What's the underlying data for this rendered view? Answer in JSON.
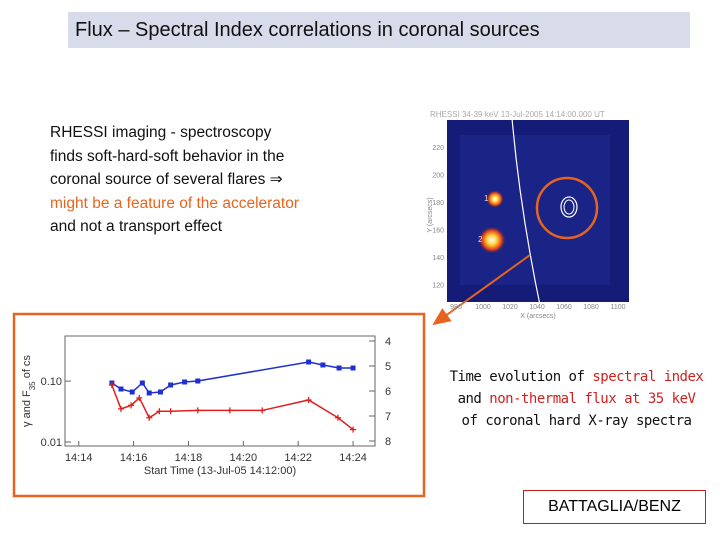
{
  "title": "Flux – Spectral Index correlations in coronal sources",
  "left_text": [
    "RHESSI imaging - spectroscopy",
    "finds  soft-hard-soft behavior in the",
    "coronal source of several flares ⇒",
    "might be a feature of the accelerator",
    "and not a transport effect"
  ],
  "image": {
    "title": "RHESSI 34-39 keV 13-Jul-2005 14:14:00.000 UT",
    "y_label": "Y (arcsecs)",
    "x_label": "X (arcsecs)",
    "yticks": [
      "220",
      "200",
      "180",
      "160",
      "140",
      "120"
    ],
    "xticks": [
      "980",
      "1000",
      "1020",
      "1040",
      "1060",
      "1080",
      "1100"
    ],
    "sources": [
      "1",
      "2"
    ]
  },
  "plot": {
    "y_label": [
      "γ and F",
      "35",
      " of cs"
    ],
    "x_label": "Start Time (13-Jul-05 14:12:00)",
    "xlim": [
      13.5,
      24.8
    ],
    "xticks": [
      {
        "value": 14,
        "label": "14:14"
      },
      {
        "value": 16,
        "label": "14:16"
      },
      {
        "value": 18,
        "label": "14:18"
      },
      {
        "value": 20,
        "label": "14:20"
      },
      {
        "value": 22,
        "label": "14:22"
      },
      {
        "value": 24,
        "label": "14:24"
      }
    ],
    "ylim": [
      0.0086,
      0.55
    ],
    "log_y": true,
    "yticks": [
      {
        "value": 0.1,
        "label": "0.10"
      },
      0.01
    ],
    "y2lim": [
      3.8,
      8.2
    ],
    "y2ticks": [
      4,
      5,
      6,
      7,
      8
    ],
    "series": [
      {
        "color": "#1f2fd0",
        "axis": "y2",
        "x": [
          15.21,
          15.54,
          15.95,
          16.32,
          16.57,
          16.98,
          17.35,
          17.86,
          18.34,
          22.38,
          22.9,
          23.49,
          24.0
        ],
        "values": [
          5.68,
          5.92,
          6.04,
          5.68,
          6.08,
          6.04,
          5.76,
          5.64,
          5.6,
          4.84,
          4.96,
          5.08,
          5.08
        ]
      },
      {
        "color": "#e02020",
        "x": [
          15.21,
          15.54,
          15.91,
          16.21,
          16.57,
          16.94,
          17.35,
          18.34,
          19.51,
          20.69,
          22.38,
          23.45,
          24.0
        ],
        "values": [
          0.086,
          0.035,
          0.04,
          0.053,
          0.025,
          0.032,
          0.032,
          0.033,
          0.033,
          0.033,
          0.049,
          0.025,
          0.016
        ]
      }
    ]
  },
  "caption": [
    [
      "Time evolution of ",
      "spectral index"
    ],
    [
      "and ",
      "non-thermal flux at 35 keV"
    ],
    [
      "of coronal hard X-ray spectra"
    ]
  ],
  "credit": "BATTAGLIA/BENZ"
}
